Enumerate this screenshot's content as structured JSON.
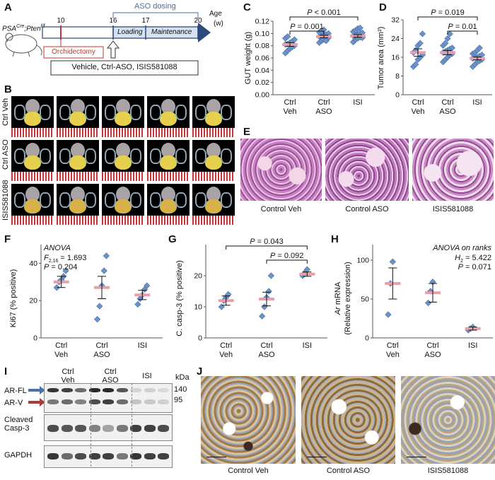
{
  "panels": {
    "A": "A",
    "B": "B",
    "C": "C",
    "D": "D",
    "E": "E",
    "F": "F",
    "G": "G",
    "H": "H",
    "I": "I",
    "J": "J"
  },
  "panelA": {
    "mouse_label_main": "PSA",
    "mouse_label_sup1": "Cre",
    "mouse_label_mid": ";Pten",
    "mouse_label_sup2": "f/f",
    "header": "ASO dosing",
    "ticks": [
      "10",
      "16",
      "17",
      "20"
    ],
    "age_label": "Age",
    "age_unit": "(w)",
    "phase1": "Loading",
    "phase2": "Maintenance",
    "orchidectomy": "Orchidectomy",
    "treatments": "Vehicle, Ctrl-ASO, ISIS581088"
  },
  "panelB": {
    "rows": [
      "Ctrl Veh",
      "Ctrl ASO",
      "ISIS581088"
    ]
  },
  "panelC": {
    "ylabel": "GUT weight (g)",
    "yticks": [
      "0.00",
      "0.02",
      "0.04",
      "0.06",
      "0.08",
      "0.10",
      "0.12"
    ],
    "categories": [
      [
        "Ctrl",
        "Veh"
      ],
      [
        "Ctrl",
        "ASO"
      ],
      [
        "ISI",
        ""
      ]
    ],
    "pvals": [
      "P < 0.001",
      "P = 0.001"
    ]
  },
  "panelD": {
    "ylabel": "Tumor area (mm²)",
    "yticks": [
      "0",
      "8",
      "16",
      "24",
      "32"
    ],
    "categories": [
      [
        "Ctrl",
        "Veh"
      ],
      [
        "Ctrl",
        "ASO"
      ],
      [
        "ISI",
        ""
      ]
    ],
    "pvals": [
      "P = 0.019",
      "P = 0.01"
    ]
  },
  "panelE": {
    "labels": [
      "Control Veh",
      "Control ASO",
      "ISIS581088"
    ]
  },
  "panelF": {
    "ylabel": "Ki67 (% positive)",
    "yticks": [
      "0",
      "20",
      "40"
    ],
    "categories": [
      [
        "Ctrl",
        "Veh"
      ],
      [
        "Ctrl",
        "ASO"
      ],
      [
        "ISI",
        ""
      ]
    ],
    "anova": "ANOVA",
    "stat_F": "F",
    "stat_F_sub": "2,16",
    "stat_F_val": " = 1.693",
    "stat_P": "P = 0.204"
  },
  "panelG": {
    "ylabel": "C. casp-3 (% positive)",
    "yticks": [
      "0",
      "10",
      "20"
    ],
    "categories": [
      [
        "Ctrl",
        "Veh"
      ],
      [
        "Ctrl",
        "ASO"
      ],
      [
        "ISI",
        ""
      ]
    ],
    "pvals": [
      "P = 0.043",
      "P = 0.092"
    ]
  },
  "panelH": {
    "ylabel1": "Ar mRNA",
    "ylabel2": "(Relative expression)",
    "yticks": [
      "0",
      "50",
      "100"
    ],
    "categories": [
      [
        "Ctrl",
        "Veh"
      ],
      [
        "Ctrl",
        "ASO"
      ],
      [
        "ISI",
        ""
      ]
    ],
    "anova": "ANOVA on ranks",
    "stat_H": "H",
    "stat_H_sub": "2",
    "stat_H_val": " = 5.422",
    "stat_P": "P = 0.071"
  },
  "panelI": {
    "groups": [
      [
        "Ctrl",
        "Veh"
      ],
      [
        "Ctrl",
        "ASO"
      ],
      [
        "ISI",
        ""
      ]
    ],
    "kda": "kDa",
    "mw": [
      "140",
      "95"
    ],
    "bands": [
      "AR-FL",
      "AR-V"
    ],
    "blot2": [
      "Cleaved",
      "Casp-3"
    ],
    "blot3": "GAPDH"
  },
  "panelJ": {
    "labels": [
      "Control Veh",
      "Control ASO",
      "ISIS581088"
    ]
  },
  "colors": {
    "point": "#6c93c8",
    "mean": "#e8a0a8",
    "accent": "#4a6fa5",
    "orch": "#c0392b"
  },
  "chart_data": [
    {
      "type": "scatter",
      "panel": "C",
      "categories": [
        "Ctrl Veh",
        "Ctrl ASO",
        "ISI"
      ],
      "ylim": [
        0,
        0.12
      ],
      "points": [
        [
          0.068,
          0.072,
          0.075,
          0.078,
          0.08,
          0.082,
          0.083,
          0.085,
          0.087,
          0.09,
          0.092,
          0.095
        ],
        [
          0.085,
          0.088,
          0.09,
          0.092,
          0.093,
          0.095,
          0.096,
          0.097,
          0.098,
          0.1,
          0.102,
          0.104,
          0.106,
          0.088,
          0.094
        ],
        [
          0.086,
          0.09,
          0.092,
          0.094,
          0.095,
          0.096,
          0.097,
          0.098,
          0.1,
          0.101,
          0.103,
          0.105,
          0.108,
          0.109,
          0.093
        ]
      ],
      "means": [
        0.082,
        0.095,
        0.096
      ]
    },
    {
      "type": "scatter",
      "panel": "D",
      "categories": [
        "Ctrl Veh",
        "Ctrl ASO",
        "ISI"
      ],
      "ylim": [
        0,
        32
      ],
      "points": [
        [
          12,
          13,
          15,
          16,
          17,
          18,
          19,
          21,
          22,
          26
        ],
        [
          14,
          15,
          16,
          17,
          17.5,
          18,
          18.5,
          19,
          19.5,
          20,
          21,
          22,
          24,
          26
        ],
        [
          12,
          13,
          14,
          14.5,
          15,
          15.5,
          16,
          16,
          16.5,
          17,
          17.5,
          18,
          19,
          20
        ]
      ],
      "means": [
        18,
        18,
        15.5
      ]
    },
    {
      "type": "scatter",
      "panel": "F",
      "categories": [
        "Ctrl Veh",
        "Ctrl ASO",
        "ISI"
      ],
      "ylim": [
        0,
        50
      ],
      "points": [
        [
          27,
          30,
          31,
          33,
          36
        ],
        [
          10,
          17,
          28,
          36,
          44
        ],
        [
          18,
          21,
          23,
          26,
          28
        ]
      ],
      "means": [
        30,
        27,
        23
      ]
    },
    {
      "type": "scatter",
      "panel": "G",
      "categories": [
        "Ctrl Veh",
        "Ctrl ASO",
        "ISI"
      ],
      "ylim": [
        0,
        30
      ],
      "points": [
        [
          10,
          12,
          13,
          14
        ],
        [
          7,
          10,
          13,
          15,
          20
        ],
        [
          20,
          21,
          22
        ]
      ],
      "means": [
        12,
        12.5,
        20.5
      ]
    },
    {
      "type": "scatter",
      "panel": "H",
      "categories": [
        "Ctrl Veh",
        "Ctrl ASO",
        "ISI"
      ],
      "ylim": [
        0,
        120
      ],
      "points": [
        [
          30,
          70,
          98
        ],
        [
          45,
          60,
          72
        ],
        [
          10,
          12,
          14
        ]
      ],
      "means": [
        70,
        58,
        12
      ]
    }
  ]
}
